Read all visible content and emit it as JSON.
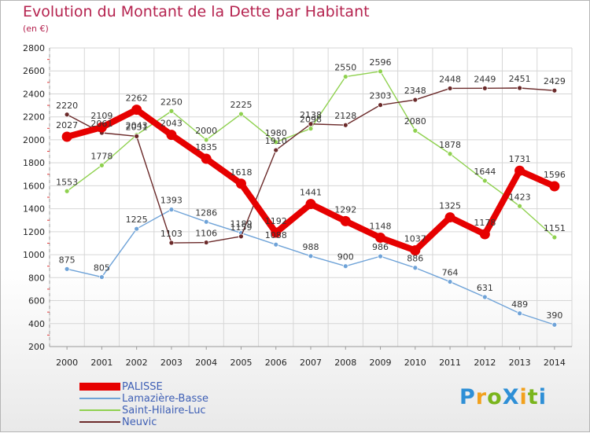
{
  "title": "Evolution du Montant de la Dette par Habitant",
  "subtitle": "(en €)",
  "brand": {
    "text": "ProXiti",
    "letters": [
      "P",
      "r",
      "o",
      "X",
      "i",
      "t",
      "i"
    ],
    "colors": [
      "#2e8fd6",
      "#f2a11d",
      "#7ab51d",
      "#2e8fd6",
      "#f2a11d",
      "#7ab51d",
      "#2e8fd6"
    ]
  },
  "chart_data": {
    "type": "line",
    "x": [
      "2000",
      "2001",
      "2002",
      "2003",
      "2004",
      "2005",
      "2006",
      "2007",
      "2008",
      "2009",
      "2010",
      "2011",
      "2012",
      "2013",
      "2014"
    ],
    "ylim": [
      200,
      2800
    ],
    "yticks": [
      200,
      400,
      600,
      800,
      1000,
      1200,
      1400,
      1600,
      1800,
      2000,
      2200,
      2400,
      2600,
      2800
    ],
    "grid": true,
    "legend_position": "bottom-left",
    "series": [
      {
        "name": "PALISSE",
        "color": "#e60000",
        "values": [
          2027,
          2109,
          2262,
          2043,
          1835,
          1618,
          1192,
          1441,
          1292,
          1148,
          1037,
          1325,
          1178,
          1731,
          1596
        ]
      },
      {
        "name": "Lamazière-Basse",
        "color": "#6fa3d8",
        "values": [
          875,
          805,
          1225,
          1393,
          1286,
          1189,
          1088,
          988,
          900,
          986,
          886,
          764,
          631,
          489,
          390
        ]
      },
      {
        "name": "Saint-Hilaire-Luc",
        "color": "#8fd14f",
        "values": [
          1553,
          1778,
          2043,
          2250,
          2000,
          2225,
          1980,
          2098,
          2550,
          2596,
          2080,
          1878,
          1644,
          1423,
          1151
        ]
      },
      {
        "name": "Neuvic",
        "color": "#6b2a2a",
        "values": [
          2220,
          2061,
          2031,
          1103,
          1106,
          1159,
          1910,
          2138,
          2128,
          2303,
          2348,
          2448,
          2449,
          2451,
          2429
        ]
      }
    ]
  }
}
